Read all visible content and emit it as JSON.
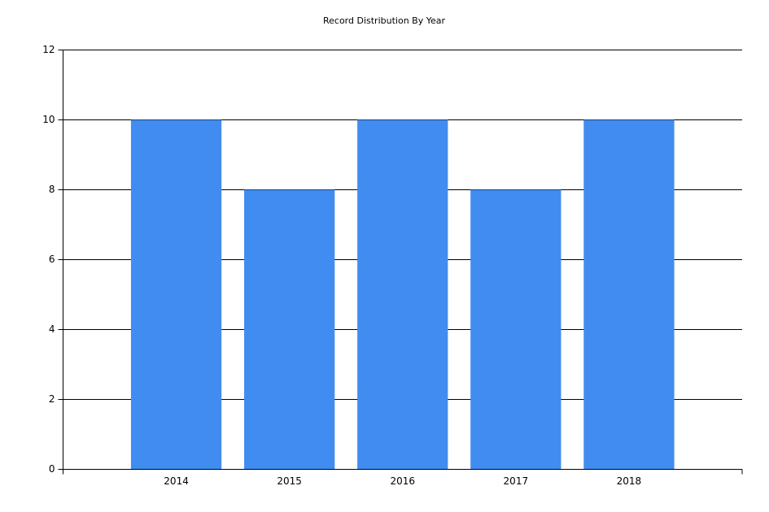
{
  "chart_data": {
    "type": "bar",
    "title": "Record Distribution By Year",
    "categories": [
      "2014",
      "2015",
      "2016",
      "2017",
      "2018"
    ],
    "values": [
      10,
      8,
      10,
      8,
      10
    ],
    "color": "#418cf0",
    "ylim": [
      0,
      12
    ],
    "yticks": [
      0,
      2,
      4,
      6,
      8,
      10,
      12
    ],
    "grid": true
  }
}
